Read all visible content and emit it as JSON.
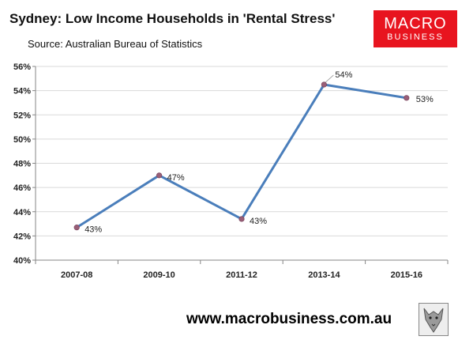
{
  "header": {
    "title": "Sydney: Low Income Households in 'Rental Stress'",
    "subtitle": "Source: Australian Bureau of Statistics"
  },
  "logo": {
    "line1": "MACRO",
    "line2": "BUSINESS",
    "color": "#e8141f"
  },
  "footer": {
    "url": "www.macrobusiness.com.au",
    "logo_icon": "wolf-icon"
  },
  "colors": {
    "line": "#4a7ebb",
    "marker": "#9a5f78",
    "grid": "#d9d9d9",
    "axis": "#868686"
  },
  "chart_data": {
    "type": "line",
    "categories": [
      "2007-08",
      "2009-10",
      "2011-12",
      "2013-14",
      "2015-16"
    ],
    "values": [
      42.7,
      47.0,
      43.4,
      54.5,
      53.4
    ],
    "data_labels": [
      "43%",
      "47%",
      "43%",
      "54%",
      "53%"
    ],
    "ylim": [
      40,
      56
    ],
    "yticks": [
      40,
      42,
      44,
      46,
      48,
      50,
      52,
      54,
      56
    ],
    "ytick_labels": [
      "40%",
      "42%",
      "44%",
      "46%",
      "48%",
      "50%",
      "52%",
      "54%",
      "56%"
    ],
    "grid": true
  }
}
